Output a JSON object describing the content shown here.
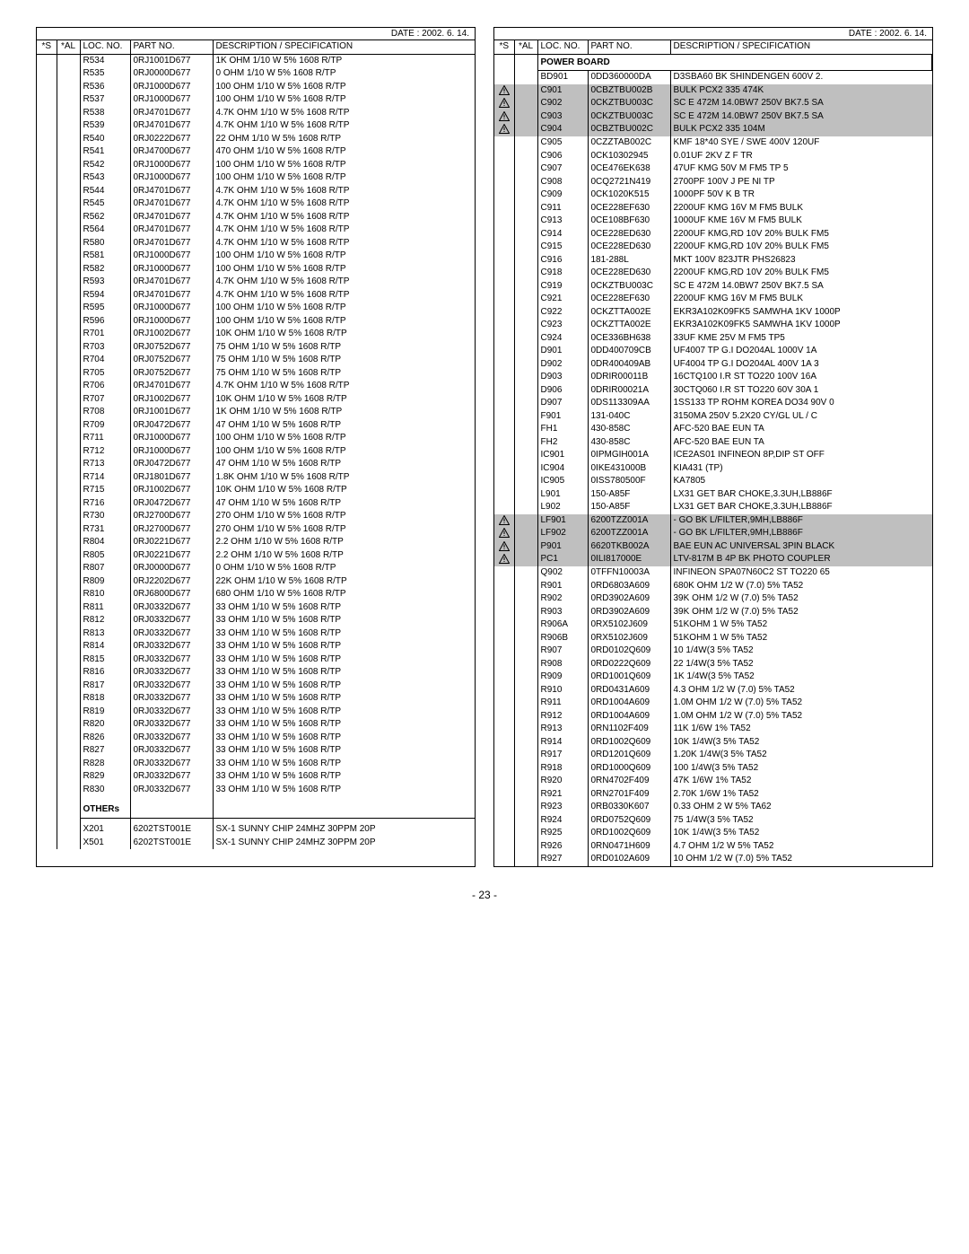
{
  "date": "DATE : 2002.  6.  14.",
  "headers": {
    "s": "*S",
    "al": "*AL",
    "loc": "LOC. NO.",
    "pn": "PART NO.",
    "desc": "DESCRIPTION / SPECIFICATION"
  },
  "page_number": "- 23 -",
  "section_left_others": "OTHERs",
  "section_right_power": "POWER BOARD",
  "left": [
    {
      "loc": "R534",
      "pn": "0RJ1001D677",
      "desc": "1K OHM 1/10 W 5% 1608 R/TP"
    },
    {
      "loc": "R535",
      "pn": "0RJ0000D677",
      "desc": "0 OHM 1/10 W 5% 1608 R/TP"
    },
    {
      "loc": "R536",
      "pn": "0RJ1000D677",
      "desc": "100 OHM 1/10 W 5% 1608 R/TP"
    },
    {
      "loc": "R537",
      "pn": "0RJ1000D677",
      "desc": "100 OHM 1/10 W 5% 1608 R/TP"
    },
    {
      "loc": "R538",
      "pn": "0RJ4701D677",
      "desc": "4.7K OHM 1/10 W 5% 1608 R/TP"
    },
    {
      "loc": "R539",
      "pn": "0RJ4701D677",
      "desc": "4.7K OHM 1/10 W 5% 1608 R/TP"
    },
    {
      "loc": "R540",
      "pn": "0RJ0222D677",
      "desc": "22 OHM 1/10 W 5% 1608 R/TP"
    },
    {
      "loc": "R541",
      "pn": "0RJ4700D677",
      "desc": "470 OHM 1/10 W 5% 1608 R/TP"
    },
    {
      "loc": "R542",
      "pn": "0RJ1000D677",
      "desc": "100 OHM 1/10 W 5% 1608 R/TP"
    },
    {
      "loc": "R543",
      "pn": "0RJ1000D677",
      "desc": "100 OHM 1/10 W 5% 1608 R/TP"
    },
    {
      "loc": "R544",
      "pn": "0RJ4701D677",
      "desc": "4.7K OHM 1/10 W 5% 1608 R/TP"
    },
    {
      "loc": "R545",
      "pn": "0RJ4701D677",
      "desc": "4.7K OHM 1/10 W 5% 1608 R/TP"
    },
    {
      "loc": "R562",
      "pn": "0RJ4701D677",
      "desc": "4.7K OHM 1/10 W 5% 1608 R/TP"
    },
    {
      "loc": "R564",
      "pn": "0RJ4701D677",
      "desc": "4.7K OHM 1/10 W 5% 1608 R/TP"
    },
    {
      "loc": "R580",
      "pn": "0RJ4701D677",
      "desc": "4.7K OHM 1/10 W 5% 1608 R/TP"
    },
    {
      "loc": "R581",
      "pn": "0RJ1000D677",
      "desc": "100 OHM 1/10 W 5% 1608 R/TP"
    },
    {
      "loc": "R582",
      "pn": "0RJ1000D677",
      "desc": "100 OHM 1/10 W 5% 1608 R/TP"
    },
    {
      "loc": "R593",
      "pn": "0RJ4701D677",
      "desc": "4.7K OHM 1/10 W 5% 1608 R/TP"
    },
    {
      "loc": "R594",
      "pn": "0RJ4701D677",
      "desc": "4.7K OHM 1/10 W 5% 1608 R/TP"
    },
    {
      "loc": "R595",
      "pn": "0RJ1000D677",
      "desc": "100 OHM 1/10 W 5% 1608 R/TP"
    },
    {
      "loc": "R596",
      "pn": "0RJ1000D677",
      "desc": "100 OHM 1/10 W 5% 1608 R/TP"
    },
    {
      "loc": "R701",
      "pn": "0RJ1002D677",
      "desc": "10K OHM 1/10 W 5% 1608 R/TP"
    },
    {
      "loc": "R703",
      "pn": "0RJ0752D677",
      "desc": "75 OHM 1/10 W 5% 1608 R/TP"
    },
    {
      "loc": "R704",
      "pn": "0RJ0752D677",
      "desc": "75 OHM 1/10 W 5% 1608 R/TP"
    },
    {
      "loc": "R705",
      "pn": "0RJ0752D677",
      "desc": "75 OHM 1/10 W 5% 1608 R/TP"
    },
    {
      "loc": "R706",
      "pn": "0RJ4701D677",
      "desc": "4.7K OHM 1/10 W 5% 1608 R/TP"
    },
    {
      "loc": "R707",
      "pn": "0RJ1002D677",
      "desc": "10K OHM 1/10 W 5% 1608 R/TP"
    },
    {
      "loc": "R708",
      "pn": "0RJ1001D677",
      "desc": "1K OHM 1/10 W 5% 1608 R/TP"
    },
    {
      "loc": "R709",
      "pn": "0RJ0472D677",
      "desc": "47 OHM 1/10 W 5% 1608 R/TP"
    },
    {
      "loc": "R711",
      "pn": "0RJ1000D677",
      "desc": "100 OHM 1/10 W 5% 1608 R/TP"
    },
    {
      "loc": "R712",
      "pn": "0RJ1000D677",
      "desc": "100 OHM 1/10 W 5% 1608 R/TP"
    },
    {
      "loc": "R713",
      "pn": "0RJ0472D677",
      "desc": "47 OHM 1/10 W 5% 1608 R/TP"
    },
    {
      "loc": "R714",
      "pn": "0RJ1801D677",
      "desc": "1.8K OHM 1/10 W 5% 1608 R/TP"
    },
    {
      "loc": "R715",
      "pn": "0RJ1002D677",
      "desc": "10K OHM 1/10 W 5% 1608 R/TP"
    },
    {
      "loc": "R716",
      "pn": "0RJ0472D677",
      "desc": "47 OHM 1/10 W 5% 1608 R/TP"
    },
    {
      "loc": "R730",
      "pn": "0RJ2700D677",
      "desc": "270 OHM 1/10 W 5% 1608 R/TP"
    },
    {
      "loc": "R731",
      "pn": "0RJ2700D677",
      "desc": "270 OHM 1/10 W 5% 1608 R/TP"
    },
    {
      "loc": "R804",
      "pn": "0RJ0221D677",
      "desc": "2.2 OHM 1/10 W 5% 1608 R/TP"
    },
    {
      "loc": "R805",
      "pn": "0RJ0221D677",
      "desc": "2.2 OHM 1/10 W 5% 1608 R/TP"
    },
    {
      "loc": "R807",
      "pn": "0RJ0000D677",
      "desc": "0 OHM 1/10 W 5% 1608 R/TP"
    },
    {
      "loc": "R809",
      "pn": "0RJ2202D677",
      "desc": "22K OHM 1/10 W 5% 1608 R/TP"
    },
    {
      "loc": "R810",
      "pn": "0RJ6800D677",
      "desc": "680 OHM 1/10 W 5% 1608 R/TP"
    },
    {
      "loc": "R811",
      "pn": "0RJ0332D677",
      "desc": "33 OHM 1/10 W 5% 1608 R/TP"
    },
    {
      "loc": "R812",
      "pn": "0RJ0332D677",
      "desc": "33 OHM 1/10 W 5% 1608 R/TP"
    },
    {
      "loc": "R813",
      "pn": "0RJ0332D677",
      "desc": "33 OHM 1/10 W 5% 1608 R/TP"
    },
    {
      "loc": "R814",
      "pn": "0RJ0332D677",
      "desc": "33 OHM 1/10 W 5% 1608 R/TP"
    },
    {
      "loc": "R815",
      "pn": "0RJ0332D677",
      "desc": "33 OHM 1/10 W 5% 1608 R/TP"
    },
    {
      "loc": "R816",
      "pn": "0RJ0332D677",
      "desc": "33 OHM 1/10 W 5% 1608 R/TP"
    },
    {
      "loc": "R817",
      "pn": "0RJ0332D677",
      "desc": "33 OHM 1/10 W 5% 1608 R/TP"
    },
    {
      "loc": "R818",
      "pn": "0RJ0332D677",
      "desc": "33 OHM 1/10 W 5% 1608 R/TP"
    },
    {
      "loc": "R819",
      "pn": "0RJ0332D677",
      "desc": "33 OHM 1/10 W 5% 1608 R/TP"
    },
    {
      "loc": "R820",
      "pn": "0RJ0332D677",
      "desc": "33 OHM 1/10 W 5% 1608 R/TP"
    },
    {
      "loc": "R826",
      "pn": "0RJ0332D677",
      "desc": "33 OHM 1/10 W 5% 1608 R/TP"
    },
    {
      "loc": "R827",
      "pn": "0RJ0332D677",
      "desc": "33 OHM 1/10 W 5% 1608 R/TP"
    },
    {
      "loc": "R828",
      "pn": "0RJ0332D677",
      "desc": "33 OHM 1/10 W 5% 1608 R/TP"
    },
    {
      "loc": "R829",
      "pn": "0RJ0332D677",
      "desc": "33 OHM 1/10 W 5% 1608 R/TP"
    },
    {
      "loc": "R830",
      "pn": "0RJ0332D677",
      "desc": "33 OHM 1/10 W 5% 1608 R/TP"
    }
  ],
  "left_others": [
    {
      "loc": "X201",
      "pn": "6202TST001E",
      "desc": "SX-1 SUNNY CHIP 24MHZ 30PPM 20P"
    },
    {
      "loc": "X501",
      "pn": "6202TST001E",
      "desc": "SX-1 SUNNY CHIP 24MHZ 30PPM 20P"
    }
  ],
  "right": [
    {
      "loc": "BD901",
      "pn": "0DD360000DA",
      "desc": "D3SBA60 BK SHINDENGEN  600V  2."
    },
    {
      "loc": "C901",
      "pn": "0CBZTBU002B",
      "desc": "BULK PCX2 335 474K",
      "warn": true,
      "shade": true
    },
    {
      "loc": "C902",
      "pn": "0CKZTBU003C",
      "desc": "SC E 472M 14.0BW7 250V BK7.5 SA",
      "warn": true,
      "shade": true
    },
    {
      "loc": "C903",
      "pn": "0CKZTBU003C",
      "desc": "SC E 472M 14.0BW7 250V BK7.5 SA",
      "warn": true,
      "shade": true
    },
    {
      "loc": "C904",
      "pn": "0CBZTBU002C",
      "desc": "BULK PCX2 335 104M",
      "warn": true,
      "shade": true
    },
    {
      "loc": "C905",
      "pn": "0CZZTAB002C",
      "desc": "KMF 18*40 SYE / SWE 400V 120UF"
    },
    {
      "loc": "C906",
      "pn": "0CK10302945",
      "desc": "0.01UF 2KV Z F TR"
    },
    {
      "loc": "C907",
      "pn": "0CE476EK638",
      "desc": "47UF KMG 50V M FM5 TP 5"
    },
    {
      "loc": "C908",
      "pn": "0CQ2721N419",
      "desc": "2700PF 100V J PE NI TP"
    },
    {
      "loc": "C909",
      "pn": "0CK1020K515",
      "desc": "1000PF 50V K B TR"
    },
    {
      "loc": "C911",
      "pn": "0CE228EF630",
      "desc": "2200UF KMG 16V M FM5 BULK"
    },
    {
      "loc": "C913",
      "pn": "0CE108BF630",
      "desc": "1000UF KME 16V M FM5 BULK"
    },
    {
      "loc": "C914",
      "pn": "0CE228ED630",
      "desc": "2200UF KMG,RD 10V 20% BULK FM5"
    },
    {
      "loc": "C915",
      "pn": "0CE228ED630",
      "desc": "2200UF KMG,RD 10V 20% BULK FM5"
    },
    {
      "loc": "C916",
      "pn": "181-288L",
      "desc": "MKT 100V 823JTR PHS26823"
    },
    {
      "loc": "C918",
      "pn": "0CE228ED630",
      "desc": "2200UF KMG,RD 10V 20% BULK FM5"
    },
    {
      "loc": "C919",
      "pn": "0CKZTBU003C",
      "desc": "SC E 472M 14.0BW7 250V BK7.5 SA"
    },
    {
      "loc": "C921",
      "pn": "0CE228EF630",
      "desc": "2200UF KMG 16V M FM5 BULK"
    },
    {
      "loc": "C922",
      "pn": "0CKZTTA002E",
      "desc": "EKR3A102K09FK5 SAMWHA 1KV 1000P"
    },
    {
      "loc": "C923",
      "pn": "0CKZTTA002E",
      "desc": "EKR3A102K09FK5 SAMWHA 1KV 1000P"
    },
    {
      "loc": "C924",
      "pn": "0CE336BH638",
      "desc": "33UF KME 25V M FM5 TP5"
    },
    {
      "loc": "D901",
      "pn": "0DD400709CB",
      "desc": "UF4007 TP G.I DO204AL 1000V 1A"
    },
    {
      "loc": "D902",
      "pn": "0DR400409AB",
      "desc": "UF4004 TP G.I DO204AL 400V 1A 3"
    },
    {
      "loc": "D903",
      "pn": "0DRIR00011B",
      "desc": "16CTQ100 I.R ST TO220 100V 16A"
    },
    {
      "loc": "D906",
      "pn": "0DRIR00021A",
      "desc": "30CTQ060 I.R ST TO220 60V 30A 1"
    },
    {
      "loc": "D907",
      "pn": "0DS113309AA",
      "desc": "1SS133 TP ROHM KOREA DO34 90V 0"
    },
    {
      "loc": "F901",
      "pn": "131-040C",
      "desc": "3150MA 250V 5.2X20 CY/GL UL / C"
    },
    {
      "loc": "FH1",
      "pn": "430-858C",
      "desc": "AFC-520 BAE EUN TA"
    },
    {
      "loc": "FH2",
      "pn": "430-858C",
      "desc": "AFC-520 BAE EUN TA"
    },
    {
      "loc": "IC901",
      "pn": "0IPMGIH001A",
      "desc": "ICE2AS01 INFINEON 8P,DIP ST OFF"
    },
    {
      "loc": "IC904",
      "pn": "0IKE431000B",
      "desc": "KIA431 (TP)"
    },
    {
      "loc": "IC905",
      "pn": "0ISS780500F",
      "desc": "KA7805"
    },
    {
      "loc": "L901",
      "pn": "150-A85F",
      "desc": "LX31 GET BAR CHOKE,3.3UH,LB886F"
    },
    {
      "loc": "L902",
      "pn": "150-A85F",
      "desc": "LX31 GET BAR CHOKE,3.3UH,LB886F"
    },
    {
      "loc": "LF901",
      "pn": "6200TZZ001A",
      "desc": "- GO BK L/FILTER,9MH,LB886F",
      "warn": true,
      "shade": true
    },
    {
      "loc": "LF902",
      "pn": "6200TZZ001A",
      "desc": "- GO BK L/FILTER,9MH,LB886F",
      "warn": true,
      "shade": true
    },
    {
      "loc": "P901",
      "pn": "6620TKB002A",
      "desc": "BAE EUN AC UNIVERSAL 3PIN BLACK",
      "warn": true,
      "shade": true
    },
    {
      "loc": "PC1",
      "pn": "0ILI817000E",
      "desc": "LTV-817M B 4P BK PHOTO COUPLER",
      "warn": true,
      "shade": true
    },
    {
      "loc": "Q902",
      "pn": "0TFFN10003A",
      "desc": "INFINEON SPA07N60C2 ST TO220 65"
    },
    {
      "loc": "R901",
      "pn": "0RD6803A609",
      "desc": "680K OHM 1/2 W (7.0)  5% TA52"
    },
    {
      "loc": "R902",
      "pn": "0RD3902A609",
      "desc": "39K OHM 1/2 W (7.0)  5% TA52"
    },
    {
      "loc": "R903",
      "pn": "0RD3902A609",
      "desc": "39K OHM 1/2 W (7.0)  5% TA52"
    },
    {
      "loc": "R906A",
      "pn": "0RX5102J609",
      "desc": "51KOHM 1 W 5% TA52"
    },
    {
      "loc": "R906B",
      "pn": "0RX5102J609",
      "desc": "51KOHM 1 W 5% TA52"
    },
    {
      "loc": "R907",
      "pn": "0RD0102Q609",
      "desc": "10 1/4W(3 5% TA52"
    },
    {
      "loc": "R908",
      "pn": "0RD0222Q609",
      "desc": "22 1/4W(3 5% TA52"
    },
    {
      "loc": "R909",
      "pn": "0RD1001Q609",
      "desc": "1K 1/4W(3 5% TA52"
    },
    {
      "loc": "R910",
      "pn": "0RD0431A609",
      "desc": "4.3 OHM 1/2 W (7.0)  5% TA52"
    },
    {
      "loc": "R911",
      "pn": "0RD1004A609",
      "desc": "1.0M OHM 1/2 W (7.0)  5% TA52"
    },
    {
      "loc": "R912",
      "pn": "0RD1004A609",
      "desc": "1.0M OHM 1/2 W (7.0)  5% TA52"
    },
    {
      "loc": "R913",
      "pn": "0RN1102F409",
      "desc": "11K 1/6W 1% TA52"
    },
    {
      "loc": "R914",
      "pn": "0RD1002Q609",
      "desc": "10K 1/4W(3 5%  TA52"
    },
    {
      "loc": "R917",
      "pn": "0RD1201Q609",
      "desc": "1.20K 1/4W(3 5%  TA52"
    },
    {
      "loc": "R918",
      "pn": "0RD1000Q609",
      "desc": "100 1/4W(3 5% TA52"
    },
    {
      "loc": "R920",
      "pn": "0RN4702F409",
      "desc": "47K 1/6W 1% TA52"
    },
    {
      "loc": "R921",
      "pn": "0RN2701F409",
      "desc": "2.70K 1/6W 1% TA52"
    },
    {
      "loc": "R923",
      "pn": "0RB0330K607",
      "desc": "0.33 OHM 2 W 5% TA62"
    },
    {
      "loc": "R924",
      "pn": "0RD0752Q609",
      "desc": "75 1/4W(3 5% TA52"
    },
    {
      "loc": "R925",
      "pn": "0RD1002Q609",
      "desc": "10K 1/4W(3 5% TA52"
    },
    {
      "loc": "R926",
      "pn": "0RN0471H609",
      "desc": "4.7 OHM 1/2 W 5% TA52"
    },
    {
      "loc": "R927",
      "pn": "0RD0102A609",
      "desc": "10 OHM 1/2 W (7.0)  5% TA52"
    }
  ]
}
